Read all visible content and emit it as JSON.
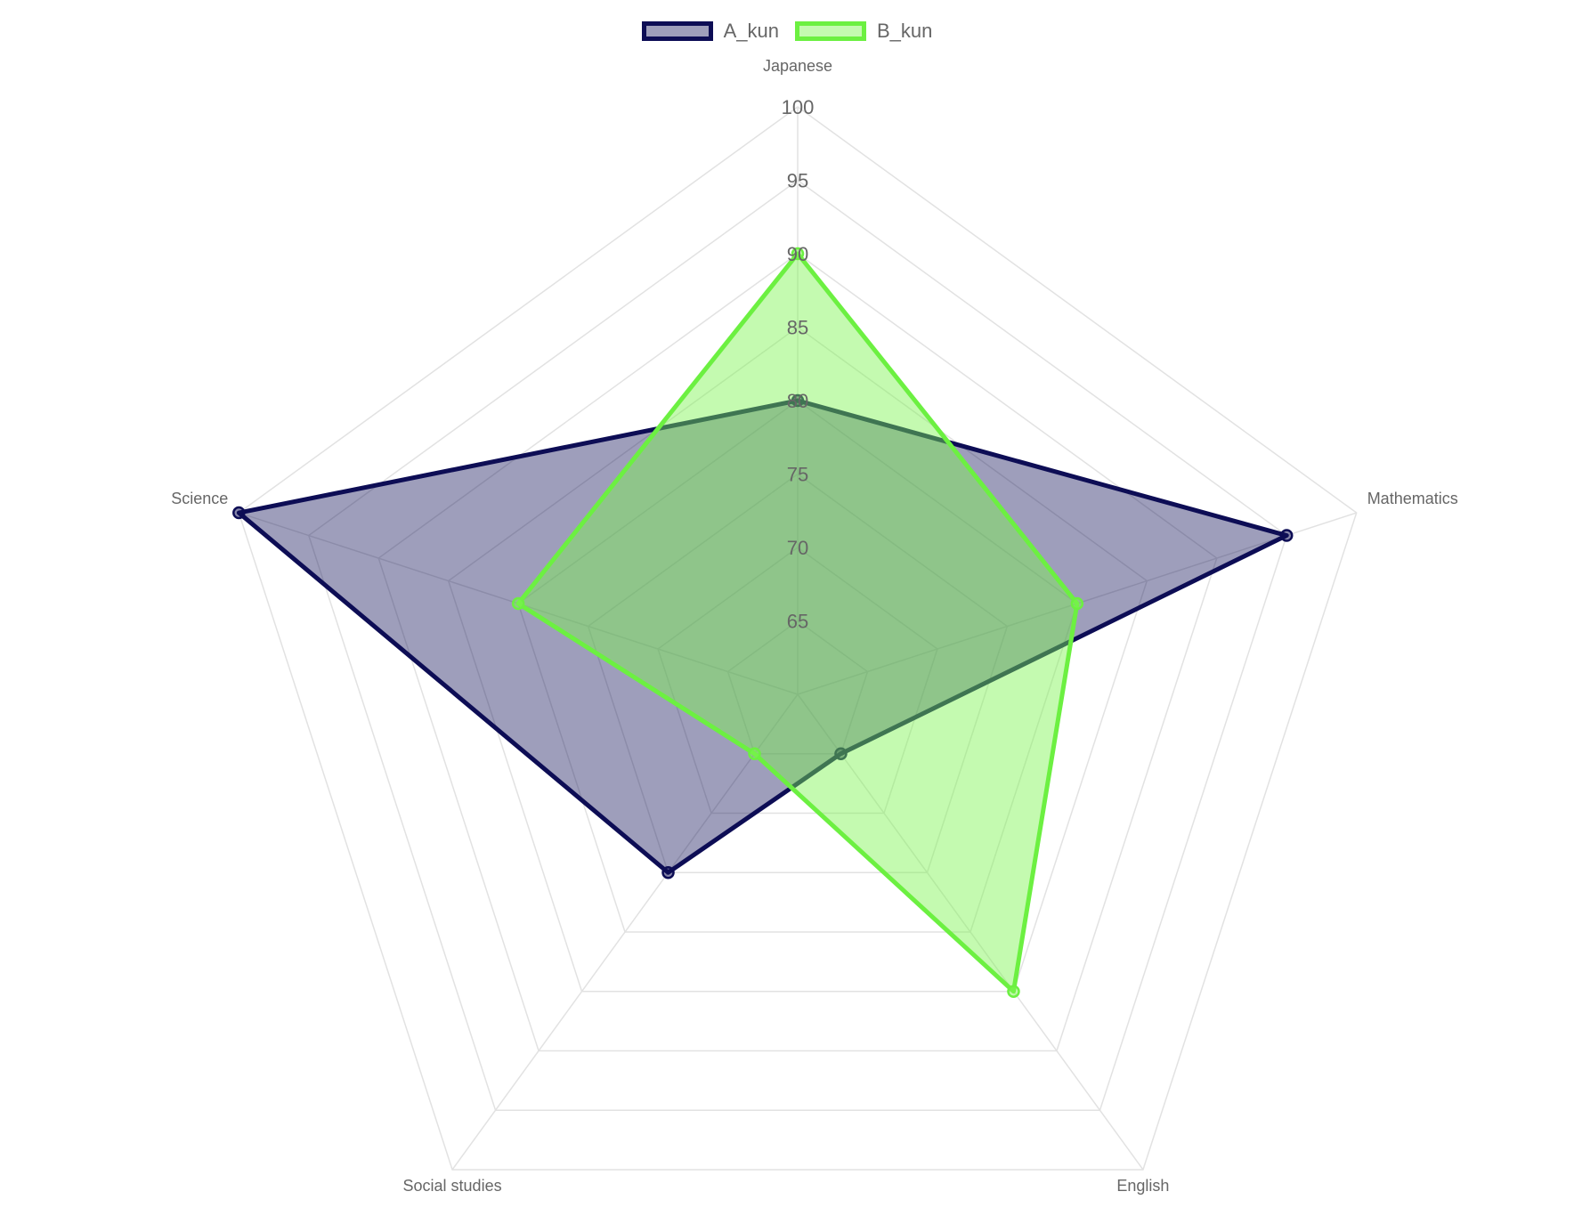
{
  "chart_data": {
    "type": "radar",
    "categories": [
      "Japanese",
      "Mathematics",
      "English",
      "Social studies",
      "Science"
    ],
    "r_ticks": [
      65,
      70,
      75,
      80,
      85,
      90,
      95,
      100
    ],
    "r_range": [
      60,
      100
    ],
    "grid": true,
    "legend_position": "top-center",
    "series": [
      {
        "name": "A_kun",
        "values": [
          80,
          95,
          65,
          75,
          100
        ],
        "line_color": "#0d0d55",
        "fill_color": "#0d0d55",
        "fill_opacity": 0.4
      },
      {
        "name": "B_kun",
        "values": [
          90,
          80,
          85,
          65,
          80
        ],
        "line_color": "#6cf041",
        "fill_color": "#7cf54f",
        "fill_opacity": 0.45
      }
    ]
  }
}
